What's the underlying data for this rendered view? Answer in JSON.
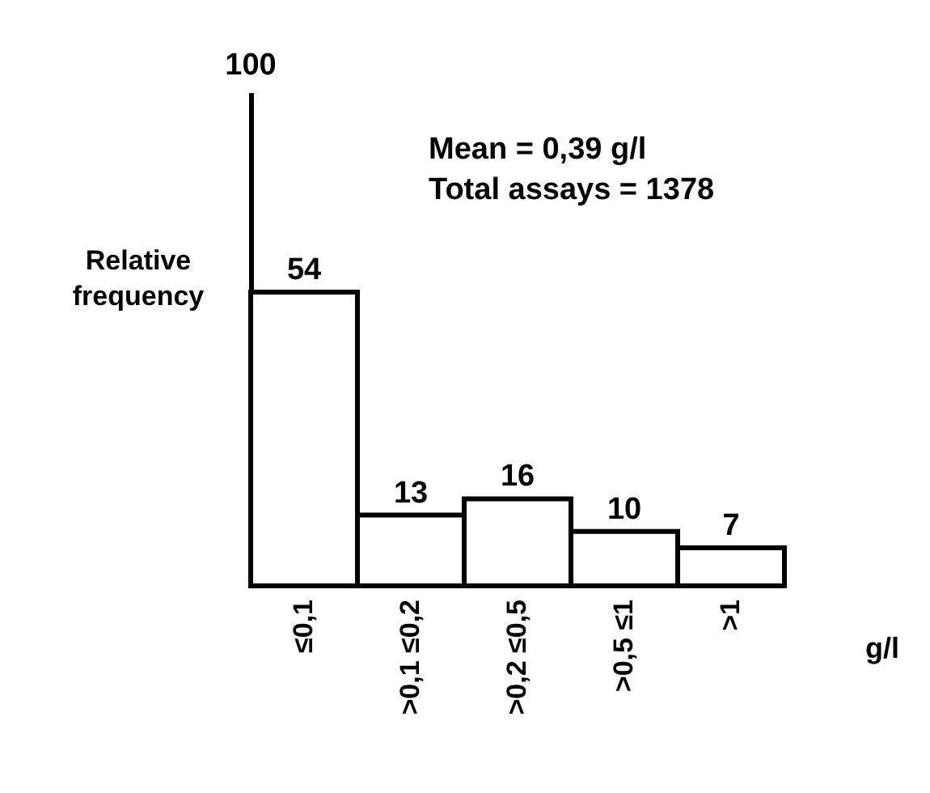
{
  "chart_data": {
    "type": "bar",
    "categories": [
      "≤0,1",
      ">0,1 ≤0,2",
      ">0,2 ≤0,5",
      ">0,5 ≤1",
      ">1"
    ],
    "values": [
      54,
      13,
      16,
      10,
      7
    ],
    "data_labels": true,
    "color": "#ffffff",
    "ylabel": "Relative frequency",
    "xlabel": "g/l",
    "annotations": [
      "100",
      "Mean = 0,39 g/l",
      "Total assays = 1378"
    ],
    "grid": false
  }
}
